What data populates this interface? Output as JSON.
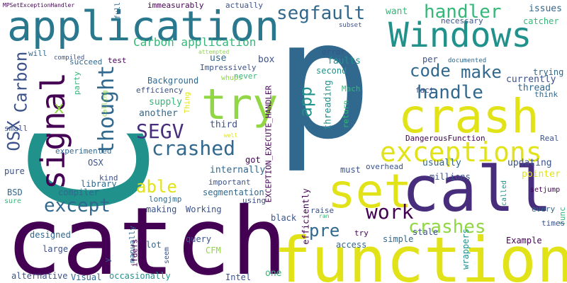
{
  "palette": {
    "background": "#ffffff",
    "dark_purple": "#440154",
    "indigo": "#3b528b",
    "blue": "#31688e",
    "teal": "#21918c",
    "green": "#35b779",
    "lime": "#90d743",
    "yellow": "#e1e318"
  },
  "words": [
    "p",
    "C",
    "catch",
    "function",
    "call",
    "crash",
    "application",
    "Windows",
    "try",
    "set",
    "exceptions",
    "C",
    "signal",
    "segfault",
    "handler",
    "code",
    "make",
    "handle",
    "crashes",
    "work",
    "except",
    "thought",
    "crashed",
    "SEGV",
    "OSX",
    "Carbon",
    "able",
    "pre",
    "app",
    "x",
    "Carbon application",
    "box",
    "error",
    "faults",
    "second",
    "threading",
    "return",
    "thread",
    "want",
    "issues",
    "necessary",
    "catcher",
    "per",
    "currently",
    "trying",
    "think",
    "fact",
    "documented",
    "DangerousFunction",
    "Real",
    "usually",
    "updating",
    "millions",
    "pointer",
    "setjump",
    "every",
    "called",
    "func",
    "times",
    "Example",
    "wrappers",
    "must",
    "overhead",
    "EXCEPTION_EXECUTE_HANDLER",
    "efficiently",
    "raise",
    "access",
    "simple",
    "stale",
    "try",
    "ran",
    "black",
    "one",
    "Intel",
    "CFM",
    "query",
    "lot",
    "seem",
    "manually",
    "ifdefs",
    "large",
    "designed",
    "pure",
    "small",
    "BSD",
    "sure",
    "alternative",
    "Visual",
    "occasionally",
    "compiler",
    "library",
    "kind",
    "experimented",
    "OSX",
    "making",
    "Working",
    "segmentation",
    "important",
    "using",
    "internally",
    "got",
    "third",
    "another",
    "supply",
    "Background",
    "efficiency",
    "Impressively",
    "use",
    "whups",
    "never",
    "attempted",
    "compiled",
    "will",
    "succeed",
    "test",
    "party",
    "calling",
    "Thing",
    "well",
    "longjmp",
    "Mach",
    "subset",
    "actually",
    "immeasurably",
    "full",
    "MPSetExceptionHandler",
    "y"
  ]
}
